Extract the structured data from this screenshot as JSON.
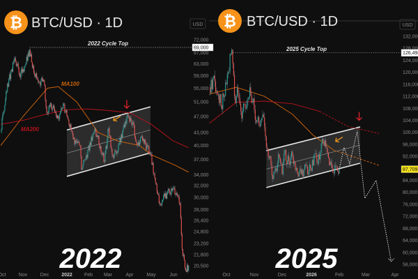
{
  "chart_data": [
    {
      "type": "candlestick",
      "title": "BTC/USD · 1D",
      "currency": "USD",
      "year_label": "2022",
      "annotation": "2022 Cycle Top",
      "cycle_top_price": 69000,
      "cycle_top_label": "69,000",
      "y_scale": "log",
      "ylim": [
        20500,
        72000
      ],
      "y_ticks": [
        "72,000",
        "67,000",
        "63,000",
        "59,000",
        "55,000",
        "51,000",
        "47,000",
        "43,000",
        "40,000",
        "37,000",
        "34,000",
        "32,000",
        "30,000",
        "28,000",
        "26,400",
        "24,800",
        "23,200",
        "21,800",
        "20,500"
      ],
      "x_ticks": [
        "Oct",
        "Nov",
        "Dec",
        "2022",
        "Feb",
        "Mar",
        "Apr",
        "May",
        "Jun"
      ],
      "grid": false,
      "close_series": [
        [
          "2021-09-29",
          43000
        ],
        [
          "2021-10-08",
          54000
        ],
        [
          "2021-10-15",
          61000
        ],
        [
          "2021-10-20",
          65000
        ],
        [
          "2021-10-27",
          59000
        ],
        [
          "2021-11-01",
          61000
        ],
        [
          "2021-11-10",
          68000
        ],
        [
          "2021-11-16",
          60000
        ],
        [
          "2021-11-24",
          57000
        ],
        [
          "2021-11-30",
          57000
        ],
        [
          "2021-12-04",
          48000
        ],
        [
          "2021-12-10",
          50000
        ],
        [
          "2021-12-20",
          46500
        ],
        [
          "2021-12-27",
          50500
        ],
        [
          "2022-01-01",
          47000
        ],
        [
          "2022-01-10",
          41500
        ],
        [
          "2022-01-20",
          40000
        ],
        [
          "2022-01-22",
          35000
        ],
        [
          "2022-01-28",
          37000
        ],
        [
          "2022-02-10",
          44000
        ],
        [
          "2022-02-14",
          42000
        ],
        [
          "2022-02-24",
          36500
        ],
        [
          "2022-03-02",
          44000
        ],
        [
          "2022-03-07",
          38000
        ],
        [
          "2022-03-15",
          39000
        ],
        [
          "2022-03-28",
          47000
        ],
        [
          "2022-04-05",
          45500
        ],
        [
          "2022-04-11",
          40000
        ],
        [
          "2022-04-20",
          41500
        ],
        [
          "2022-04-30",
          38000
        ],
        [
          "2022-05-09",
          31000
        ],
        [
          "2022-05-12",
          29000
        ],
        [
          "2022-05-20",
          30000
        ],
        [
          "2022-05-31",
          31500
        ],
        [
          "2022-06-07",
          30000
        ],
        [
          "2022-06-10",
          29000
        ],
        [
          "2022-06-13",
          22500
        ],
        [
          "2022-06-18",
          20000
        ],
        [
          "2022-06-22",
          20500
        ]
      ],
      "ma100": {
        "name": "MA100",
        "color": "#c8620f",
        "points": [
          [
            "2021-09-29",
            40000
          ],
          [
            "2021-11-01",
            47000
          ],
          [
            "2021-12-05",
            55000
          ],
          [
            "2021-12-20",
            55500
          ],
          [
            "2022-01-15",
            51000
          ],
          [
            "2022-02-15",
            43000
          ],
          [
            "2022-03-15",
            41000
          ],
          [
            "2022-04-15",
            40000
          ],
          [
            "2022-05-01",
            38000
          ],
          [
            "2022-06-01",
            36000
          ],
          [
            "2022-06-22",
            34500
          ]
        ]
      },
      "ma200": {
        "name": "MA200",
        "color": "#b3141c",
        "points": [
          [
            "2021-09-29",
            45000
          ],
          [
            "2021-11-01",
            46000
          ],
          [
            "2021-12-01",
            47500
          ],
          [
            "2022-01-01",
            48800
          ],
          [
            "2022-02-01",
            49000
          ],
          [
            "2022-03-01",
            48600
          ],
          [
            "2022-04-01",
            48000
          ],
          [
            "2022-05-01",
            45000
          ],
          [
            "2022-06-01",
            41000
          ],
          [
            "2022-06-22",
            39500
          ]
        ]
      },
      "channel": {
        "upper": [
          [
            "2022-01-01",
            43600
          ],
          [
            "2022-04-30",
            49600
          ]
        ],
        "lower": [
          [
            "2022-01-01",
            33700
          ],
          [
            "2022-04-30",
            38400
          ]
        ]
      },
      "markers": [
        {
          "type": "red-down-arrow",
          "at": [
            "2022-03-28",
            49200
          ]
        },
        {
          "type": "orange-arrow",
          "at": [
            "2022-03-09",
            46000
          ]
        }
      ]
    },
    {
      "type": "candlestick",
      "title": "BTC/USD · 1D",
      "currency": "USD",
      "year_label": "2025",
      "annotation": "2025 Cycle Top",
      "cycle_top_price": 126494,
      "cycle_top_label": "126,494",
      "last_price": 87709,
      "last_price_label": "87,709",
      "y_scale": "linear",
      "ylim": [
        56000,
        132000
      ],
      "y_ticks": [
        "132,000",
        "128,000",
        "124,000",
        "120,000",
        "116,000",
        "112,000",
        "108,000",
        "104,000",
        "100,000",
        "96,000",
        "92,000",
        "84,000",
        "80,000",
        "76,000",
        "72,000",
        "68,000",
        "64,000",
        "60,000",
        "56,000"
      ],
      "x_ticks": [
        "Oct",
        "Nov",
        "Dec",
        "2026",
        "Feb",
        "Mar",
        "Apr"
      ],
      "grid": false,
      "close_series": [
        [
          "2025-09-12",
          115000
        ],
        [
          "2025-09-18",
          117000
        ],
        [
          "2025-09-25",
          109000
        ],
        [
          "2025-10-01",
          116000
        ],
        [
          "2025-10-03",
          120000
        ],
        [
          "2025-10-06",
          126000
        ],
        [
          "2025-10-08",
          123000
        ],
        [
          "2025-10-10",
          112000
        ],
        [
          "2025-10-14",
          113000
        ],
        [
          "2025-10-17",
          107000
        ],
        [
          "2025-10-22",
          108000
        ],
        [
          "2025-10-27",
          115000
        ],
        [
          "2025-10-30",
          110000
        ],
        [
          "2025-11-04",
          104000
        ],
        [
          "2025-11-07",
          102000
        ],
        [
          "2025-11-11",
          105000
        ],
        [
          "2025-11-14",
          95000
        ],
        [
          "2025-11-18",
          92000
        ],
        [
          "2025-11-21",
          84500
        ],
        [
          "2025-11-24",
          88000
        ],
        [
          "2025-11-28",
          91500
        ],
        [
          "2025-12-01",
          86000
        ],
        [
          "2025-12-03",
          93000
        ],
        [
          "2025-12-08",
          90500
        ],
        [
          "2025-12-12",
          92000
        ],
        [
          "2025-12-17",
          86500
        ],
        [
          "2025-12-24",
          87500
        ],
        [
          "2025-12-31",
          88000
        ],
        [
          "2026-01-05",
          93000
        ],
        [
          "2026-01-10",
          91000
        ],
        [
          "2026-01-14",
          97000
        ],
        [
          "2026-01-17",
          95000
        ],
        [
          "2026-01-21",
          89000
        ],
        [
          "2026-01-25",
          86500
        ],
        [
          "2026-01-29",
          88500
        ],
        [
          "2026-02-01",
          87700
        ]
      ],
      "projection": [
        [
          "2026-02-01",
          87700
        ],
        [
          "2026-02-06",
          95000
        ],
        [
          "2026-02-12",
          89500
        ],
        [
          "2026-02-20",
          100500
        ],
        [
          "2026-02-28",
          78000
        ],
        [
          "2026-03-12",
          84000
        ],
        [
          "2026-03-28",
          57000
        ]
      ],
      "ma100": {
        "color": "#c8620f",
        "points": [
          [
            "2025-09-12",
            112700
          ],
          [
            "2025-10-12",
            115000
          ],
          [
            "2025-11-12",
            112000
          ],
          [
            "2025-12-12",
            106000
          ],
          [
            "2026-01-03",
            99000
          ],
          [
            "2026-01-26",
            94000
          ],
          [
            "2026-03-15",
            89000
          ]
        ],
        "projected_from": "2026-02-01"
      },
      "ma200": {
        "color": "#b3141c",
        "points": [
          [
            "2025-09-12",
            103000
          ],
          [
            "2025-10-12",
            110000
          ],
          [
            "2025-11-12",
            110400
          ],
          [
            "2025-12-12",
            109500
          ],
          [
            "2026-01-10",
            107000
          ],
          [
            "2026-02-10",
            102000
          ],
          [
            "2026-03-15",
            99600
          ]
        ],
        "projected_from": "2026-02-01"
      },
      "channel": {
        "upper": [
          [
            "2025-11-14",
            93900
          ],
          [
            "2026-02-23",
            101800
          ]
        ],
        "lower": [
          [
            "2025-11-14",
            81600
          ],
          [
            "2026-02-23",
            89700
          ]
        ]
      },
      "markers": [
        {
          "type": "red-down-arrow",
          "at": [
            "2026-02-22",
            104000
          ]
        },
        {
          "type": "orange-arrow",
          "at": [
            "2026-01-28",
            97000
          ]
        }
      ]
    }
  ],
  "colors": {
    "up": "#26a69a",
    "down": "#ef5350",
    "btc_orange": "#f7931a",
    "last_price_bg": "#f5e11a",
    "ma100": "#c8620f",
    "ma200": "#b3141c"
  },
  "icons": [
    "bitcoin-logo-icon"
  ]
}
